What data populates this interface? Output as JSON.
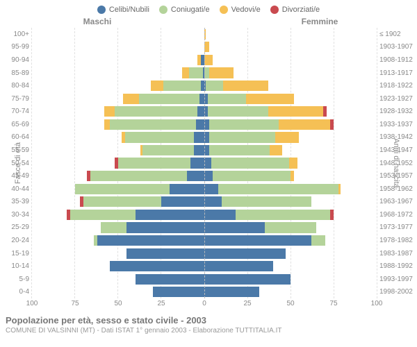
{
  "legend": [
    {
      "label": "Celibi/Nubili",
      "color": "#4b79a8"
    },
    {
      "label": "Coniugati/e",
      "color": "#b4d39a"
    },
    {
      "label": "Vedovi/e",
      "color": "#f5c055"
    },
    {
      "label": "Divorziati/e",
      "color": "#c94a4f"
    }
  ],
  "headers": {
    "male": "Maschi",
    "female": "Femmine"
  },
  "axis_left_label": "Fasce di età",
  "axis_right_label": "Anni di nascita",
  "title": "Popolazione per età, sesso e stato civile - 2003",
  "subtitle": "COMUNE DI VALSINNI (MT) - Dati ISTAT 1° gennaio 2003 - Elaborazione TUTTITALIA.IT",
  "xmax": 100,
  "xticks": [
    100,
    75,
    50,
    25,
    0,
    25,
    50,
    75,
    100
  ],
  "colors": {
    "single": "#4b79a8",
    "married": "#b4d39a",
    "widowed": "#f5c055",
    "divorced": "#c94a4f",
    "grid": "#e0e0e0",
    "midline": "#bbbbbb",
    "text": "#888888",
    "bg": "#ffffff"
  },
  "rows": [
    {
      "age": "100+",
      "years": "≤ 1902",
      "m": {
        "s": 0,
        "c": 0,
        "w": 0,
        "d": 0
      },
      "f": {
        "s": 0,
        "c": 0,
        "w": 1,
        "d": 0
      }
    },
    {
      "age": "95-99",
      "years": "1903-1907",
      "m": {
        "s": 0,
        "c": 0,
        "w": 0,
        "d": 0
      },
      "f": {
        "s": 0,
        "c": 0,
        "w": 3,
        "d": 0
      }
    },
    {
      "age": "90-94",
      "years": "1908-1912",
      "m": {
        "s": 2,
        "c": 0,
        "w": 2,
        "d": 0
      },
      "f": {
        "s": 0,
        "c": 0,
        "w": 5,
        "d": 0
      }
    },
    {
      "age": "85-89",
      "years": "1913-1917",
      "m": {
        "s": 1,
        "c": 8,
        "w": 4,
        "d": 0
      },
      "f": {
        "s": 0,
        "c": 3,
        "w": 14,
        "d": 0
      }
    },
    {
      "age": "80-84",
      "years": "1918-1922",
      "m": {
        "s": 2,
        "c": 22,
        "w": 7,
        "d": 0
      },
      "f": {
        "s": 1,
        "c": 10,
        "w": 26,
        "d": 0
      }
    },
    {
      "age": "75-79",
      "years": "1923-1927",
      "m": {
        "s": 3,
        "c": 35,
        "w": 9,
        "d": 0
      },
      "f": {
        "s": 2,
        "c": 22,
        "w": 28,
        "d": 0
      }
    },
    {
      "age": "70-74",
      "years": "1928-1932",
      "m": {
        "s": 4,
        "c": 48,
        "w": 6,
        "d": 0
      },
      "f": {
        "s": 2,
        "c": 35,
        "w": 32,
        "d": 2
      }
    },
    {
      "age": "65-69",
      "years": "1933-1937",
      "m": {
        "s": 5,
        "c": 50,
        "w": 3,
        "d": 0
      },
      "f": {
        "s": 3,
        "c": 40,
        "w": 30,
        "d": 2
      }
    },
    {
      "age": "60-64",
      "years": "1938-1942",
      "m": {
        "s": 6,
        "c": 40,
        "w": 2,
        "d": 0
      },
      "f": {
        "s": 3,
        "c": 38,
        "w": 14,
        "d": 0
      }
    },
    {
      "age": "55-59",
      "years": "1943-1947",
      "m": {
        "s": 6,
        "c": 30,
        "w": 1,
        "d": 0
      },
      "f": {
        "s": 3,
        "c": 35,
        "w": 7,
        "d": 0
      }
    },
    {
      "age": "50-54",
      "years": "1948-1952",
      "m": {
        "s": 8,
        "c": 42,
        "w": 0,
        "d": 2
      },
      "f": {
        "s": 4,
        "c": 45,
        "w": 5,
        "d": 0
      }
    },
    {
      "age": "45-49",
      "years": "1953-1957",
      "m": {
        "s": 10,
        "c": 56,
        "w": 0,
        "d": 2
      },
      "f": {
        "s": 5,
        "c": 45,
        "w": 2,
        "d": 0
      }
    },
    {
      "age": "40-44",
      "years": "1958-1962",
      "m": {
        "s": 20,
        "c": 55,
        "w": 0,
        "d": 0
      },
      "f": {
        "s": 8,
        "c": 70,
        "w": 1,
        "d": 0
      }
    },
    {
      "age": "35-39",
      "years": "1963-1967",
      "m": {
        "s": 25,
        "c": 45,
        "w": 0,
        "d": 2
      },
      "f": {
        "s": 10,
        "c": 52,
        "w": 0,
        "d": 0
      }
    },
    {
      "age": "30-34",
      "years": "1968-1972",
      "m": {
        "s": 40,
        "c": 38,
        "w": 0,
        "d": 2
      },
      "f": {
        "s": 18,
        "c": 55,
        "w": 0,
        "d": 2
      }
    },
    {
      "age": "25-29",
      "years": "1973-1977",
      "m": {
        "s": 45,
        "c": 15,
        "w": 0,
        "d": 0
      },
      "f": {
        "s": 35,
        "c": 30,
        "w": 0,
        "d": 0
      }
    },
    {
      "age": "20-24",
      "years": "1978-1982",
      "m": {
        "s": 62,
        "c": 2,
        "w": 0,
        "d": 0
      },
      "f": {
        "s": 62,
        "c": 8,
        "w": 0,
        "d": 0
      }
    },
    {
      "age": "15-19",
      "years": "1983-1987",
      "m": {
        "s": 45,
        "c": 0,
        "w": 0,
        "d": 0
      },
      "f": {
        "s": 47,
        "c": 0,
        "w": 0,
        "d": 0
      }
    },
    {
      "age": "10-14",
      "years": "1988-1992",
      "m": {
        "s": 55,
        "c": 0,
        "w": 0,
        "d": 0
      },
      "f": {
        "s": 40,
        "c": 0,
        "w": 0,
        "d": 0
      }
    },
    {
      "age": "5-9",
      "years": "1993-1997",
      "m": {
        "s": 40,
        "c": 0,
        "w": 0,
        "d": 0
      },
      "f": {
        "s": 50,
        "c": 0,
        "w": 0,
        "d": 0
      }
    },
    {
      "age": "0-4",
      "years": "1998-2002",
      "m": {
        "s": 30,
        "c": 0,
        "w": 0,
        "d": 0
      },
      "f": {
        "s": 32,
        "c": 0,
        "w": 0,
        "d": 0
      }
    }
  ]
}
